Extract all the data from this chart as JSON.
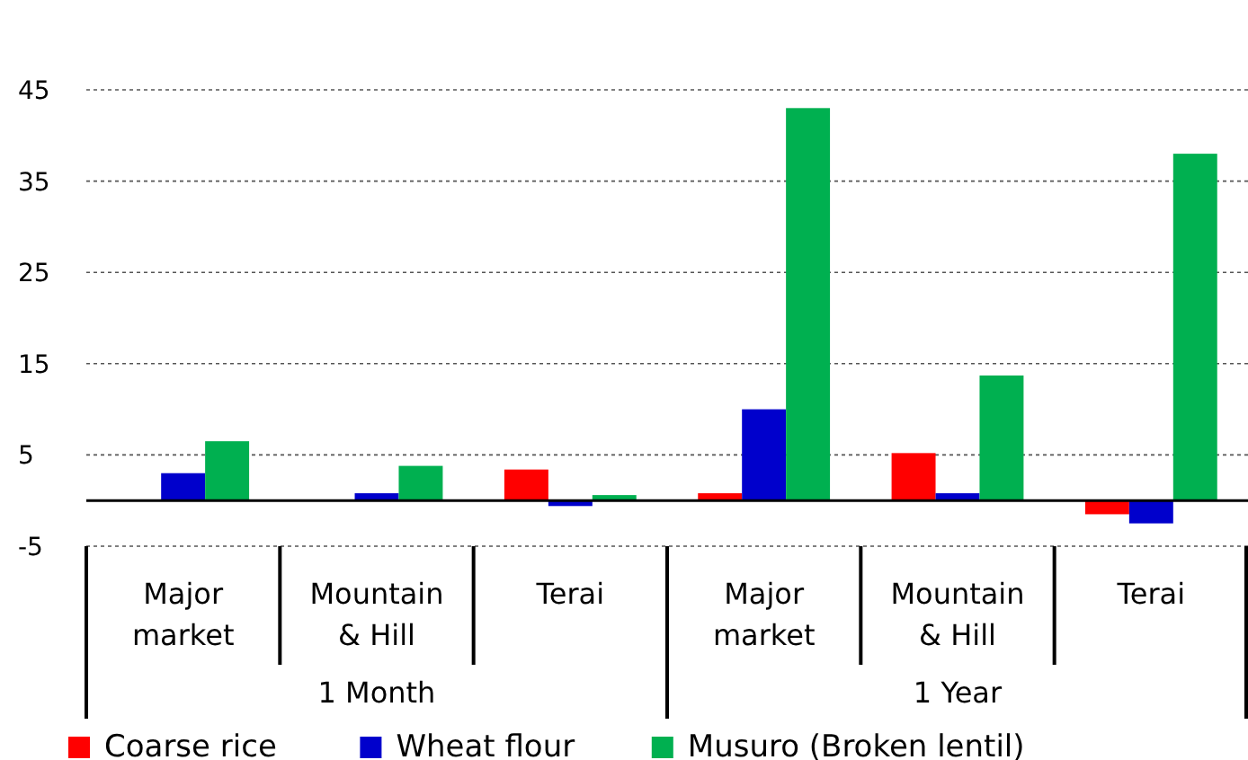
{
  "chart_data": {
    "type": "bar",
    "categories": [
      "Major market",
      "Mountain & Hill",
      "Terai",
      "Major market",
      "Mountain & Hill",
      "Terai"
    ],
    "series": [
      {
        "name": "Coarse rice",
        "color": "#ff0000",
        "values": [
          0,
          0,
          3.4,
          0.8,
          5.2,
          -1.5
        ]
      },
      {
        "name": "Wheat flour",
        "color": "#0000cc",
        "values": [
          3,
          0.8,
          -0.6,
          10,
          0.8,
          -2.5
        ]
      },
      {
        "name": "Musuro (Broken lentil)",
        "color": "#00b050",
        "values": [
          6.5,
          3.8,
          0.6,
          43,
          13.7,
          38
        ]
      }
    ],
    "ylim": [
      -5,
      45
    ],
    "yticks": [
      -5,
      5,
      15,
      25,
      35,
      45
    ],
    "grid": "y",
    "legend": "bottom",
    "annotations": [
      "1 Month",
      "1 Year"
    ]
  }
}
